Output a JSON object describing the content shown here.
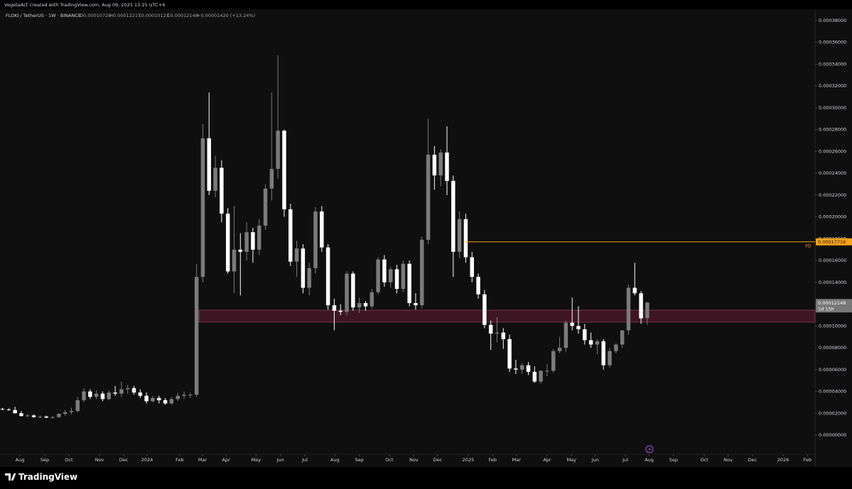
{
  "header": {
    "credit": "VegetaALT created with TradingView.com, Aug 09, 2025 13:25 UTC+4"
  },
  "footer": {
    "brand": "TradingView"
  },
  "chart_data": {
    "type": "candlestick",
    "legend": {
      "symbol": "FLOKI / TetherUS · 1W · BINANCE",
      "open": "O0.00010729",
      "high": "H0.00012217",
      "low": "L0.00010123",
      "close": "C0.00012148",
      "change": "+0.00001420 (+13.24%)"
    },
    "up_color": "#7b7b7b",
    "down_color": "#ffffff",
    "ylim": [
      -2.86e-05,
      0.0003897
    ],
    "xlim": [
      -0.4,
      129.8
    ],
    "yticks": [
      {
        "value": 0,
        "label": "0.00000000"
      },
      {
        "value": 2e-05,
        "label": "0.00002000"
      },
      {
        "value": 4e-05,
        "label": "0.00004000"
      },
      {
        "value": 6e-05,
        "label": "0.00006000"
      },
      {
        "value": 8e-05,
        "label": "0.00008000"
      },
      {
        "value": 0.0001,
        "label": "0.00010000"
      },
      {
        "value": 0.00012,
        "label": "0.00012000"
      },
      {
        "value": 0.00014,
        "label": "0.00014000"
      },
      {
        "value": 0.00016,
        "label": "0.00016000"
      },
      {
        "value": 0.00018,
        "label": "0.00018000"
      },
      {
        "value": 0.0002,
        "label": "0.00020000"
      },
      {
        "value": 0.00022,
        "label": "0.00022000"
      },
      {
        "value": 0.00024,
        "label": "0.00024000"
      },
      {
        "value": 0.00026,
        "label": "0.00026000"
      },
      {
        "value": 0.00028,
        "label": "0.00028000"
      },
      {
        "value": 0.0003,
        "label": "0.00030000"
      },
      {
        "value": 0.00032,
        "label": "0.00032000"
      },
      {
        "value": 0.00034,
        "label": "0.00034000"
      },
      {
        "value": 0.00036,
        "label": "0.00036000"
      },
      {
        "value": 0.00038,
        "label": "0.00038000"
      }
    ],
    "xticks": [
      {
        "value": 2.78,
        "label": "Aug"
      },
      {
        "value": 6.75,
        "label": "Sep"
      },
      {
        "value": 10.6,
        "label": "Oct"
      },
      {
        "value": 15.5,
        "label": "Nov"
      },
      {
        "value": 19.35,
        "label": "Dec"
      },
      {
        "value": 23.1,
        "label": "2024"
      },
      {
        "value": 28.3,
        "label": "Feb"
      },
      {
        "value": 31.95,
        "label": "Mar"
      },
      {
        "value": 35.7,
        "label": "Apr"
      },
      {
        "value": 40.5,
        "label": "May"
      },
      {
        "value": 44.4,
        "label": "Jun"
      },
      {
        "value": 48.3,
        "label": "Jul"
      },
      {
        "value": 53.1,
        "label": "Aug"
      },
      {
        "value": 57.0,
        "label": "Sep"
      },
      {
        "value": 61.8,
        "label": "Oct"
      },
      {
        "value": 65.7,
        "label": "Nov"
      },
      {
        "value": 69.5,
        "label": "Dec"
      },
      {
        "value": 74.4,
        "label": "2025"
      },
      {
        "value": 78.3,
        "label": "Feb"
      },
      {
        "value": 82.1,
        "label": "Mar"
      },
      {
        "value": 87.0,
        "label": "Apr"
      },
      {
        "value": 90.9,
        "label": "May"
      },
      {
        "value": 94.7,
        "label": "Jun"
      },
      {
        "value": 99.5,
        "label": "Jul"
      },
      {
        "value": 103.3,
        "label": "Aug"
      },
      {
        "value": 107.2,
        "label": "Sep"
      },
      {
        "value": 112.1,
        "label": "Oct"
      },
      {
        "value": 115.9,
        "label": "Nov"
      },
      {
        "value": 119.8,
        "label": "Dec"
      },
      {
        "value": 124.7,
        "label": "2026"
      },
      {
        "value": 128.6,
        "label": "Feb"
      }
    ],
    "zone": {
      "from": 31.4,
      "low": 0.0001035,
      "high": 0.0001145
    },
    "hline": {
      "from": 73.9,
      "value": 0.00017716,
      "label": "YO",
      "color": "#f7a21b"
    },
    "countdown": "1d 15h",
    "ohlc": [
      [
        2.4e-05,
        2.5e-05,
        2.3e-05,
        2.35e-05
      ],
      [
        2.35e-05,
        2.45e-05,
        2.25e-05,
        2.3e-05
      ],
      [
        2.3e-05,
        2.6e-05,
        2e-05,
        2e-05
      ],
      [
        2e-05,
        2.2e-05,
        1.7e-05,
        1.75e-05
      ],
      [
        1.75e-05,
        1.95e-05,
        1.65e-05,
        1.8e-05
      ],
      [
        1.8e-05,
        1.9e-05,
        1.6e-05,
        1.65e-05
      ],
      [
        1.65e-05,
        1.8e-05,
        1.55e-05,
        1.7e-05
      ],
      [
        1.7e-05,
        1.8e-05,
        1.55e-05,
        1.6e-05
      ],
      [
        1.6e-05,
        1.75e-05,
        1.5e-05,
        1.65e-05
      ],
      [
        1.65e-05,
        2e-05,
        1.6e-05,
        1.95e-05
      ],
      [
        1.95e-05,
        2.3e-05,
        1.8e-05,
        2.1e-05
      ],
      [
        2.1e-05,
        2.5e-05,
        1.9e-05,
        2.2e-05
      ],
      [
        2.2e-05,
        3.5e-05,
        2.1e-05,
        3.2e-05
      ],
      [
        3.2e-05,
        4.3e-05,
        3e-05,
        4e-05
      ],
      [
        4e-05,
        4.2e-05,
        3.3e-05,
        3.5e-05
      ],
      [
        3.5e-05,
        4.1e-05,
        3.3e-05,
        3.8e-05
      ],
      [
        3.8e-05,
        4e-05,
        3.1e-05,
        3.3e-05
      ],
      [
        3.3e-05,
        4.1e-05,
        3.2e-05,
        3.9e-05
      ],
      [
        3.9e-05,
        4.5e-05,
        3.6e-05,
        3.8e-05
      ],
      [
        3.8e-05,
        4.9e-05,
        3.5e-05,
        4.2e-05
      ],
      [
        4.2e-05,
        4.6e-05,
        3.8e-05,
        4.3e-05
      ],
      [
        4.3e-05,
        4.5e-05,
        3.7e-05,
        3.9e-05
      ],
      [
        3.9e-05,
        4.2e-05,
        3.4e-05,
        3.6e-05
      ],
      [
        3.6e-05,
        3.9e-05,
        2.9e-05,
        3.1e-05
      ],
      [
        3.1e-05,
        3.6e-05,
        3e-05,
        3.4e-05
      ],
      [
        3.4e-05,
        3.6e-05,
        2.9e-05,
        3.2e-05
      ],
      [
        3.2e-05,
        3.4e-05,
        2.8e-05,
        2.9e-05
      ],
      [
        2.9e-05,
        3.5e-05,
        2.8e-05,
        3.3e-05
      ],
      [
        3.3e-05,
        3.9e-05,
        3.1e-05,
        3.6e-05
      ],
      [
        3.6e-05,
        4e-05,
        3.3e-05,
        3.7e-05
      ],
      [
        3.7e-05,
        3.9e-05,
        3.4e-05,
        3.7e-05
      ],
      [
        3.7e-05,
        0.000157,
        3.5e-05,
        0.000145
      ],
      [
        0.000145,
        0.000285,
        0.00014,
        0.000272
      ],
      [
        0.000272,
        0.000314,
        0.00022,
        0.000224
      ],
      [
        0.000224,
        0.000256,
        0.000218,
        0.000245
      ],
      [
        0.000245,
        0.000252,
        0.000195,
        0.000203
      ],
      [
        0.000203,
        0.000208,
        0.000148,
        0.00015
      ],
      [
        0.00015,
        0.00021,
        0.00013,
        0.00017
      ],
      [
        0.00017,
        0.000185,
        0.000128,
        0.000168
      ],
      [
        0.000168,
        0.000195,
        0.00016,
        0.000186
      ],
      [
        0.000186,
        0.00019,
        0.000158,
        0.00017
      ],
      [
        0.00017,
        0.000198,
        0.000165,
        0.000192
      ],
      [
        0.000192,
        0.00023,
        0.000188,
        0.000226
      ],
      [
        0.000226,
        0.000314,
        0.000215,
        0.000244
      ],
      [
        0.000244,
        0.000348,
        0.000235,
        0.000279
      ],
      [
        0.000279,
        0.00028,
        0.0002,
        0.000207
      ],
      [
        0.000207,
        0.000212,
        0.000155,
        0.000159
      ],
      [
        0.000159,
        0.000178,
        0.000145,
        0.000171
      ],
      [
        0.000171,
        0.000175,
        0.00013,
        0.000135
      ],
      [
        0.000135,
        0.000158,
        0.000128,
        0.000153
      ],
      [
        0.000153,
        0.000209,
        0.000148,
        0.000205
      ],
      [
        0.000205,
        0.00021,
        0.000168,
        0.000172
      ],
      [
        0.000172,
        0.000175,
        0.000115,
        0.000119
      ],
      [
        0.000119,
        0.000125,
        9.6e-05,
        0.000114
      ],
      [
        0.000114,
        0.00012,
        0.00011,
        0.000113
      ],
      [
        0.000113,
        0.00015,
        0.00011,
        0.000148
      ],
      [
        0.000148,
        0.00015,
        0.000114,
        0.000117
      ],
      [
        0.000117,
        0.000126,
        0.000112,
        0.000121
      ],
      [
        0.000121,
        0.000123,
        0.000114,
        0.000118
      ],
      [
        0.000118,
        0.000134,
        0.000116,
        0.000131
      ],
      [
        0.000131,
        0.000163,
        0.000129,
        0.000161
      ],
      [
        0.000161,
        0.000165,
        0.000136,
        0.00014
      ],
      [
        0.00014,
        0.000154,
        0.000135,
        0.000152
      ],
      [
        0.000152,
        0.000156,
        0.00013,
        0.000134
      ],
      [
        0.000134,
        0.00016,
        0.000131,
        0.000157
      ],
      [
        0.000157,
        0.00016,
        0.000118,
        0.000121
      ],
      [
        0.000121,
        0.00013,
        0.000115,
        0.000119
      ],
      [
        0.000119,
        0.000182,
        0.000116,
        0.000179
      ],
      [
        0.000179,
        0.00029,
        0.000175,
        0.000257
      ],
      [
        0.000257,
        0.000265,
        0.000225,
        0.000238
      ],
      [
        0.000238,
        0.000262,
        0.000228,
        0.000259
      ],
      [
        0.000259,
        0.000283,
        0.00022,
        0.000233
      ],
      [
        0.000233,
        0.000238,
        0.000145,
        0.000168
      ],
      [
        0.000168,
        0.000205,
        0.000162,
        0.000198
      ],
      [
        0.000198,
        0.000203,
        0.000158,
        0.000163
      ],
      [
        0.000163,
        0.000168,
        0.00014,
        0.000145
      ],
      [
        0.000145,
        0.000148,
        0.000125,
        0.000129
      ],
      [
        0.000129,
        0.000133,
        9.8e-05,
        0.000101
      ],
      [
        0.000101,
        0.000105,
        7.8e-05,
        9.3e-05
      ],
      [
        9.3e-05,
        0.000108,
        8.5e-05,
        9.4e-05
      ],
      [
        9.4e-05,
        9.8e-05,
        7.9e-05,
        8.8e-05
      ],
      [
        8.8e-05,
        9.2e-05,
        5.8e-05,
        6.1e-05
      ],
      [
        6.1e-05,
        6.9e-05,
        5.6e-05,
        6e-05
      ],
      [
        6e-05,
        6.6e-05,
        5.6e-05,
        6.4e-05
      ],
      [
        6.4e-05,
        6.7e-05,
        5.5e-05,
        5.8e-05
      ],
      [
        5.8e-05,
        6.3e-05,
        4.8e-05,
        4.9e-05
      ],
      [
        4.9e-05,
        5.9e-05,
        4.7e-05,
        5.9e-05
      ],
      [
        5.9e-05,
        6.5e-05,
        5.4e-05,
        5.9e-05
      ],
      [
        5.9e-05,
        7.9e-05,
        5.7e-05,
        7.7e-05
      ],
      [
        7.7e-05,
        9e-05,
        7.5e-05,
        8e-05
      ],
      [
        8e-05,
        0.000105,
        7.6e-05,
        0.000103
      ],
      [
        0.000103,
        0.000126,
        9.6e-05,
        0.0001
      ],
      [
        0.0001,
        0.000118,
        9.3e-05,
        9.7e-05
      ],
      [
        9.7e-05,
        0.000102,
        8.3e-05,
        8.7e-05
      ],
      [
        8.7e-05,
        9.4e-05,
        8e-05,
        8.3e-05
      ],
      [
        8.3e-05,
        8.8e-05,
        7.4e-05,
        8.6e-05
      ],
      [
        8.6e-05,
        8.8e-05,
        6e-05,
        6.4e-05
      ],
      [
        6.4e-05,
        8e-05,
        6.2e-05,
        7.7e-05
      ],
      [
        7.7e-05,
        8.4e-05,
        7.5e-05,
        8.3e-05
      ],
      [
        8.3e-05,
        9.6e-05,
        8e-05,
        9.6e-05
      ],
      [
        9.6e-05,
        0.000138,
        9.2e-05,
        0.000135
      ],
      [
        0.000135,
        0.000158,
        0.000128,
        0.00013
      ],
      [
        0.00013,
        0.000132,
        0.000102,
        0.000107
      ],
      [
        0.00010729,
        0.00012217,
        0.00010123,
        0.00012148
      ]
    ]
  }
}
